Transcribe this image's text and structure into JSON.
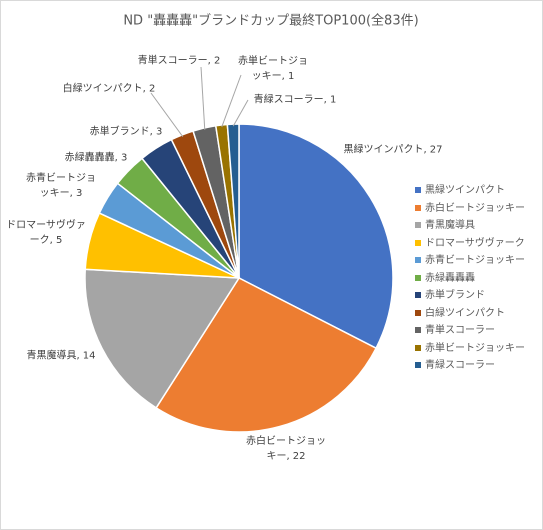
{
  "chart_data": {
    "type": "pie",
    "title": "ND \"轟轟轟\"ブランドカップ最終TOP100(全83件)",
    "categories": [
      "黒緑ツインパクト",
      "赤白ビートジョッキー",
      "青黒魔導具",
      "ドロマーサヴヴァーク",
      "赤青ビートジョッキー",
      "赤緑轟轟轟",
      "赤単ブランド",
      "白緑ツインパクト",
      "青単スコーラー",
      "赤単ビートジョッキー",
      "青緑スコーラー"
    ],
    "values": [
      27,
      22,
      14,
      5,
      3,
      3,
      3,
      2,
      2,
      1,
      1
    ],
    "value_labels": [
      "黒緑ツインパクト, 27",
      "赤白ビートジョッキー, 22",
      "青黒魔導具, 14",
      "ドロマーサヴヴァーク, 5",
      "赤青ビートジョッキー, 3",
      "赤緑轟轟轟, 3",
      "赤単ブランド, 3",
      "白緑ツインパクト, 2",
      "青単スコーラー, 2",
      "赤単ビートジョッキー, 1",
      "青緑スコーラー, 1"
    ],
    "colors": [
      "#4472c4",
      "#ed7d31",
      "#a5a5a5",
      "#ffc000",
      "#5b9bd5",
      "#70ad47",
      "#264478",
      "#9e480e",
      "#636363",
      "#997300",
      "#255e91"
    ],
    "legend": "right"
  }
}
